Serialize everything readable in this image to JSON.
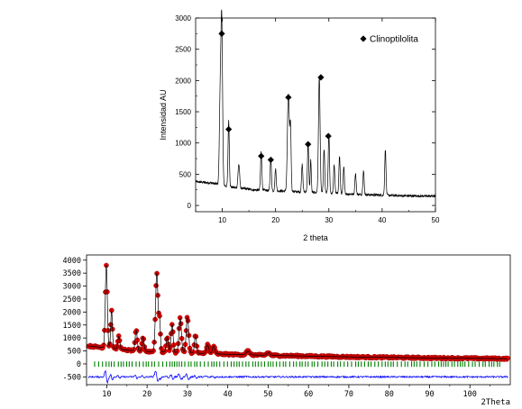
{
  "chart_data": [
    {
      "type": "line",
      "xlabel": "2 theta",
      "ylabel": "Intensidad AU",
      "xlim": [
        5,
        50
      ],
      "ylim": [
        -100,
        3000
      ],
      "xticks": [
        10,
        20,
        30,
        40,
        50
      ],
      "yticks": [
        0,
        500,
        1000,
        1500,
        2000,
        2500,
        3000
      ],
      "grid": false,
      "legend_position": "top-right",
      "legend_label": "Clinoptilolita",
      "legend_marker": "diamond",
      "line_color": "#000000",
      "baseline": [
        [
          5,
          380
        ],
        [
          8,
          360
        ],
        [
          12,
          290
        ],
        [
          16,
          250
        ],
        [
          20,
          235
        ],
        [
          24,
          220
        ],
        [
          28,
          205
        ],
        [
          32,
          190
        ],
        [
          36,
          175
        ],
        [
          40,
          165
        ],
        [
          44,
          155
        ],
        [
          48,
          150
        ],
        [
          50,
          150
        ]
      ],
      "peaks": [
        {
          "x": 9.9,
          "y": 2600,
          "w": 0.15
        },
        {
          "x": 9.6,
          "y": 1350,
          "w": 0.15
        },
        {
          "x": 11.2,
          "y": 1050,
          "w": 0.12
        },
        {
          "x": 13.1,
          "y": 380,
          "w": 0.15
        },
        {
          "x": 17.3,
          "y": 620,
          "w": 0.12
        },
        {
          "x": 19.1,
          "y": 520,
          "w": 0.12
        },
        {
          "x": 20.0,
          "y": 350,
          "w": 0.12
        },
        {
          "x": 22.4,
          "y": 1560,
          "w": 0.18
        },
        {
          "x": 22.8,
          "y": 1000,
          "w": 0.12
        },
        {
          "x": 25.0,
          "y": 450,
          "w": 0.12
        },
        {
          "x": 26.1,
          "y": 800,
          "w": 0.12
        },
        {
          "x": 26.6,
          "y": 520,
          "w": 0.1
        },
        {
          "x": 28.2,
          "y": 1850,
          "w": 0.15
        },
        {
          "x": 29.1,
          "y": 700,
          "w": 0.12
        },
        {
          "x": 30.0,
          "y": 950,
          "w": 0.12
        },
        {
          "x": 31.0,
          "y": 450,
          "w": 0.12
        },
        {
          "x": 32.0,
          "y": 600,
          "w": 0.12
        },
        {
          "x": 32.8,
          "y": 420,
          "w": 0.12
        },
        {
          "x": 35.0,
          "y": 330,
          "w": 0.12
        },
        {
          "x": 36.5,
          "y": 380,
          "w": 0.12
        },
        {
          "x": 40.6,
          "y": 730,
          "w": 0.12
        }
      ],
      "markers": [
        {
          "x": 9.9,
          "y": 2750
        },
        {
          "x": 11.2,
          "y": 1220
        },
        {
          "x": 17.3,
          "y": 790
        },
        {
          "x": 19.1,
          "y": 730
        },
        {
          "x": 22.4,
          "y": 1730
        },
        {
          "x": 26.1,
          "y": 980
        },
        {
          "x": 28.5,
          "y": 2050
        },
        {
          "x": 29.9,
          "y": 1110
        }
      ]
    },
    {
      "type": "line",
      "xlabel": "2Theta",
      "ylabel": "",
      "xlim": [
        5,
        110
      ],
      "ylim": [
        -800,
        4200
      ],
      "xticks": [
        10,
        20,
        30,
        40,
        50,
        60,
        70,
        80,
        90,
        100
      ],
      "yticks": [
        -500,
        0,
        500,
        1000,
        1500,
        2000,
        2500,
        3000,
        3500,
        4000
      ],
      "grid": false,
      "series": [
        {
          "role": "observed",
          "color": "#ff0000",
          "marker": "circle"
        },
        {
          "role": "calculated",
          "color": "#000000"
        },
        {
          "role": "reflections",
          "color": "#008000"
        },
        {
          "role": "difference",
          "color": "#0000ff"
        }
      ],
      "baseline": [
        [
          5,
          700
        ],
        [
          8,
          650
        ],
        [
          12,
          580
        ],
        [
          16,
          520
        ],
        [
          20,
          480
        ],
        [
          25,
          450
        ],
        [
          30,
          420
        ],
        [
          35,
          400
        ],
        [
          40,
          370
        ],
        [
          50,
          330
        ],
        [
          60,
          300
        ],
        [
          70,
          270
        ],
        [
          80,
          250
        ],
        [
          90,
          230
        ],
        [
          100,
          215
        ],
        [
          110,
          200
        ]
      ],
      "peaks": [
        {
          "x": 9.9,
          "y": 3200,
          "w": 0.25
        },
        {
          "x": 11.2,
          "y": 1500,
          "w": 0.2
        },
        {
          "x": 13.0,
          "y": 500,
          "w": 0.25
        },
        {
          "x": 17.3,
          "y": 800,
          "w": 0.25
        },
        {
          "x": 19.0,
          "y": 550,
          "w": 0.25
        },
        {
          "x": 22.4,
          "y": 3050,
          "w": 0.3
        },
        {
          "x": 23.1,
          "y": 1200,
          "w": 0.2
        },
        {
          "x": 25.0,
          "y": 600,
          "w": 0.25
        },
        {
          "x": 26.2,
          "y": 1100,
          "w": 0.25
        },
        {
          "x": 28.2,
          "y": 1350,
          "w": 0.3
        },
        {
          "x": 30.0,
          "y": 1400,
          "w": 0.3
        },
        {
          "x": 32.0,
          "y": 700,
          "w": 0.25
        },
        {
          "x": 35.0,
          "y": 350,
          "w": 0.3
        },
        {
          "x": 36.5,
          "y": 300,
          "w": 0.3
        },
        {
          "x": 45.0,
          "y": 150,
          "w": 0.4
        },
        {
          "x": 50.0,
          "y": 100,
          "w": 0.4
        }
      ],
      "difference_level": -500,
      "reflections_y": -10
    }
  ]
}
